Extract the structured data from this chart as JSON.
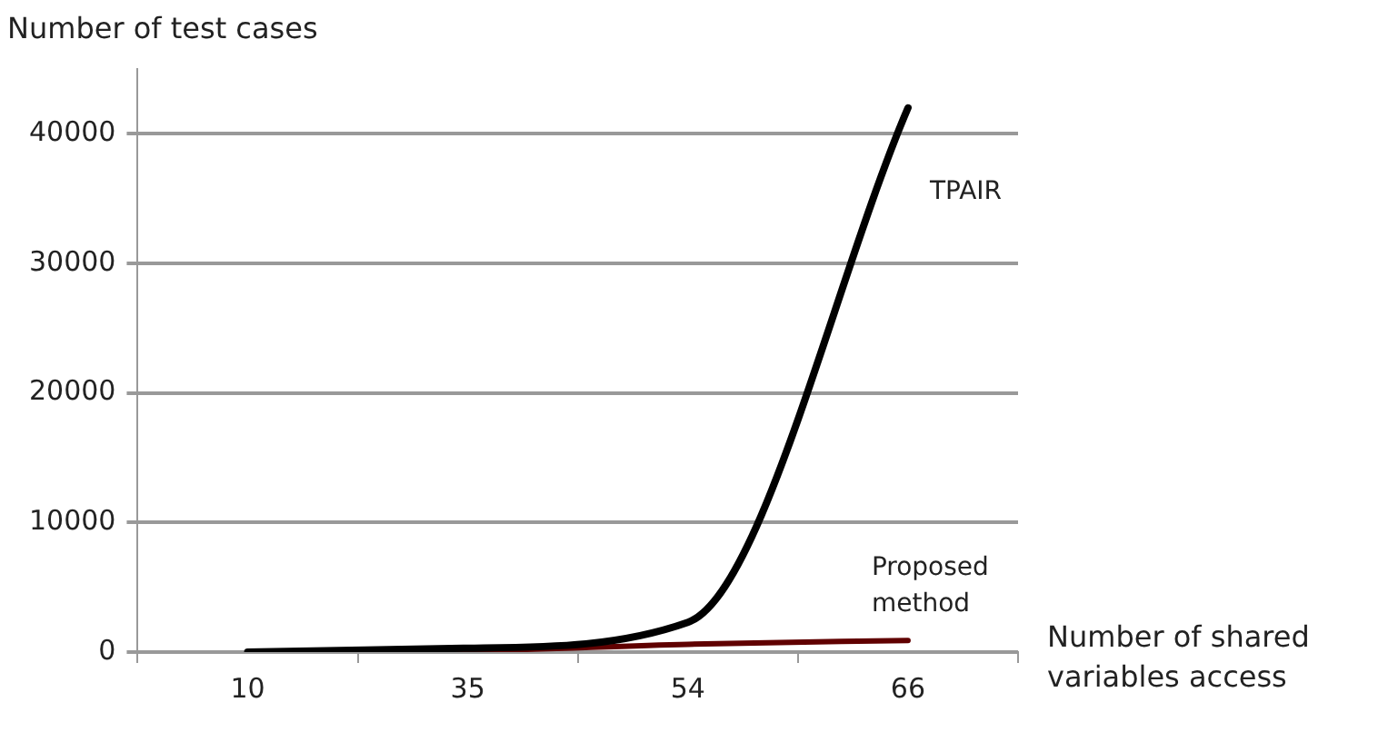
{
  "chart_data": {
    "type": "line",
    "ylabel": "Number of test cases",
    "xlabel": "Number of shared variables access",
    "categories": [
      "10",
      "35",
      "54",
      "66"
    ],
    "series": [
      {
        "name": "TPAIR",
        "color": "#000000",
        "values": [
          0,
          300,
          2300,
          42000
        ]
      },
      {
        "name": "Proposed method",
        "color": "#600000",
        "values": [
          0,
          100,
          600,
          900
        ]
      }
    ],
    "ylim": [
      0,
      45000
    ],
    "yticks": [
      0,
      10000,
      20000,
      30000,
      40000
    ],
    "grid": "y",
    "legend": false,
    "marker": "none",
    "line_style": "solid"
  }
}
